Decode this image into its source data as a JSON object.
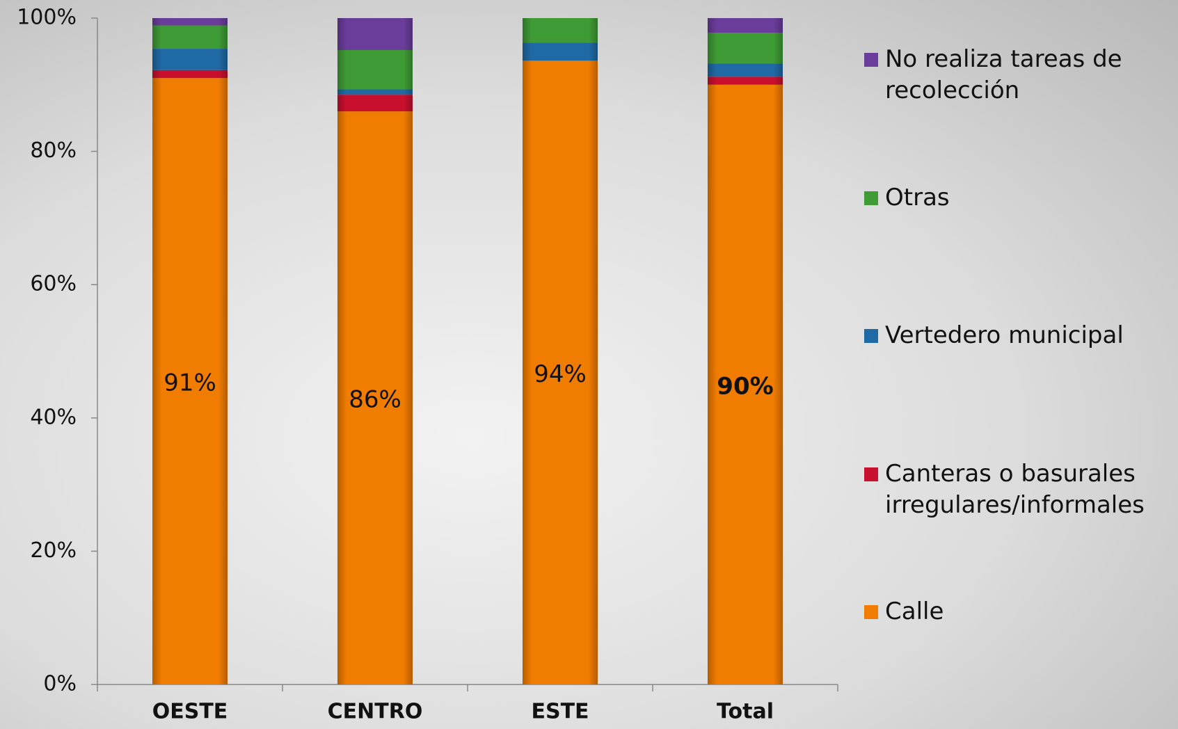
{
  "chart_data": {
    "type": "stacked_bar",
    "categories": [
      "OESTE",
      "CENTRO",
      "ESTE",
      "Total"
    ],
    "series": [
      {
        "name": "Calle",
        "color": "#f07c00",
        "values": [
          91,
          86,
          93.6,
          90
        ],
        "value_labels": [
          "91%",
          "86%",
          "94%",
          "90%"
        ]
      },
      {
        "name": "Canteras o basurales irregulares/informales",
        "color": "#c8102e",
        "values": [
          1.2,
          2.5,
          0,
          1.2
        ]
      },
      {
        "name": "Vertedero municipal",
        "color": "#1f6aa5",
        "values": [
          3.2,
          0.8,
          2.7,
          2.0
        ]
      },
      {
        "name": "Otras",
        "color": "#3f9b35",
        "values": [
          3.5,
          5.9,
          3.7,
          4.6
        ]
      },
      {
        "name": "No realiza tareas de recolección",
        "color": "#6a3d9a",
        "values": [
          1.1,
          4.8,
          0,
          2.2
        ]
      }
    ],
    "ylim": [
      0,
      100
    ],
    "yticks": [
      {
        "value": 0,
        "label": "0%"
      },
      {
        "value": 20,
        "label": "20%"
      },
      {
        "value": 40,
        "label": "40%"
      },
      {
        "value": 60,
        "label": "60%"
      },
      {
        "value": 80,
        "label": "80%"
      },
      {
        "value": 100,
        "label": "100%"
      }
    ],
    "legend": "right"
  }
}
